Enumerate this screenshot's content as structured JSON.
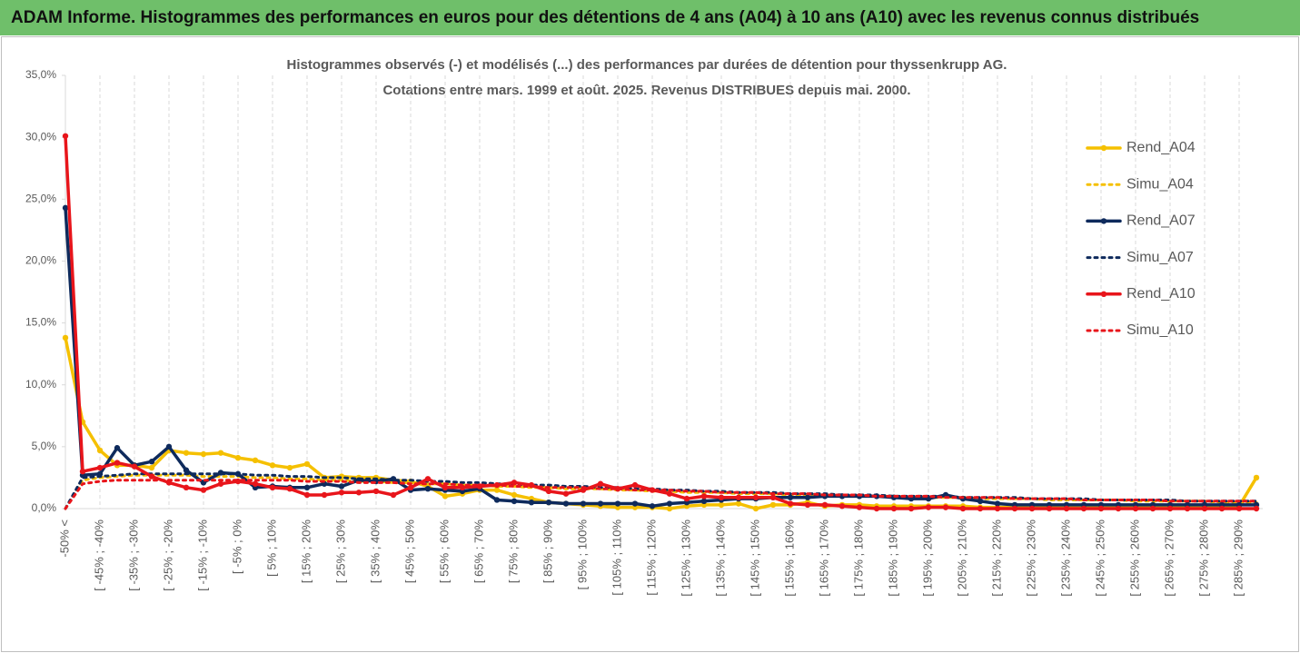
{
  "chart_data": {
    "type": "line",
    "title": "ADAM Informe. Histogrammes des performances en euros pour des détentions de 4 ans (A04) à 10 ans (A10) avec les revenus connus distribués",
    "subtitle": [
      "Histogrammes observés (-) et modélisés (...) des performances par durées de détention pour thyssenkrupp AG.",
      "Cotations entre mars. 1999 et août. 2025. Revenus DISTRIBUES depuis mai. 2000."
    ],
    "categories": [
      "-50% <",
      null,
      "[ -45% ; -40%",
      null,
      "[ -35% ; -30%",
      null,
      "[ -25% ; -20%",
      null,
      "[ -15% ; -10%",
      null,
      "[ -5% ; 0%",
      null,
      "[ 5% ; 10%",
      null,
      "[ 15% ; 20%",
      null,
      "[ 25% ; 30%",
      null,
      "[ 35% ; 40%",
      null,
      "[ 45% ; 50%",
      null,
      "[ 55% ; 60%",
      null,
      "[ 65% ; 70%",
      null,
      "[ 75% ; 80%",
      null,
      "[ 85% ; 90%",
      null,
      "[ 95% ; 100%",
      null,
      "[ 105% ; 110%",
      null,
      "[ 115% ; 120%",
      null,
      "[ 125% ; 130%",
      null,
      "[ 135% ; 140%",
      null,
      "[ 145% ; 150%",
      null,
      "[ 155% ; 160%",
      null,
      "[ 165% ; 170%",
      null,
      "[ 175% ; 180%",
      null,
      "[ 185% ; 190%",
      null,
      "[ 195% ; 200%",
      null,
      "[ 205% ; 210%",
      null,
      "[ 215% ; 220%",
      null,
      "[ 225% ; 230%",
      null,
      "[ 235% ; 240%",
      null,
      "[ 245% ; 250%",
      null,
      "[ 255% ; 260%",
      null,
      "[ 265% ; 270%",
      null,
      "[ 275% ; 280%",
      null,
      "[ 285% ; 290%",
      null
    ],
    "ylim": [
      0,
      35
    ],
    "yticks": [
      {
        "value": 0,
        "label": "0,0%"
      },
      {
        "value": 5,
        "label": "5,0%"
      },
      {
        "value": 10,
        "label": "10,0%"
      },
      {
        "value": 15,
        "label": "15,0%"
      },
      {
        "value": 20,
        "label": "20,0%"
      },
      {
        "value": 25,
        "label": "25,0%"
      },
      {
        "value": 30,
        "label": "30,0%"
      },
      {
        "value": 35,
        "label": "35,0%"
      }
    ],
    "legend": "right",
    "series": [
      {
        "name": "Rend_A04",
        "color": "#f5c000",
        "style": "solid",
        "values": [
          13.8,
          7.0,
          4.7,
          3.5,
          3.5,
          3.3,
          4.7,
          4.5,
          4.4,
          4.5,
          4.1,
          3.9,
          3.5,
          3.3,
          3.6,
          2.5,
          2.6,
          2.5,
          2.5,
          2.3,
          2.2,
          1.8,
          1.0,
          1.2,
          1.5,
          1.5,
          1.1,
          0.8,
          0.5,
          0.4,
          0.3,
          0.2,
          0.1,
          0.1,
          0.1,
          0.0,
          0.2,
          0.3,
          0.3,
          0.4,
          0.0,
          0.3,
          0.3,
          0.5,
          0.2,
          0.3,
          0.3,
          0.2,
          0.2,
          0.2,
          0.2,
          0.2,
          0.2,
          0.1,
          0.1,
          0.1,
          0.1,
          0.1,
          0.1,
          0.1,
          0.1,
          0.1,
          0.1,
          0.1,
          0.1,
          0.1,
          0.1,
          0.1,
          0.2,
          2.5
        ]
      },
      {
        "name": "Simu_A04",
        "color": "#f5c000",
        "style": "dotted",
        "values": [
          0.0,
          2.3,
          2.5,
          2.6,
          2.7,
          2.7,
          2.7,
          2.7,
          2.6,
          2.6,
          2.6,
          2.5,
          2.5,
          2.4,
          2.4,
          2.3,
          2.3,
          2.2,
          2.2,
          2.1,
          2.1,
          2.0,
          2.0,
          1.9,
          1.9,
          1.8,
          1.8,
          1.7,
          1.7,
          1.6,
          1.6,
          1.6,
          1.5,
          1.5,
          1.4,
          1.4,
          1.3,
          1.3,
          1.3,
          1.2,
          1.2,
          1.2,
          1.1,
          1.1,
          1.1,
          1.0,
          1.0,
          1.0,
          1.0,
          0.9,
          0.9,
          0.9,
          0.9,
          0.8,
          0.8,
          0.8,
          0.8,
          0.7,
          0.7,
          0.7,
          0.7,
          0.7,
          0.6,
          0.6,
          0.6,
          0.6,
          0.6,
          0.5,
          0.5,
          0.5
        ]
      },
      {
        "name": "Rend_A07",
        "color": "#0e2a5c",
        "style": "solid",
        "values": [
          24.3,
          2.7,
          2.8,
          4.9,
          3.5,
          3.8,
          5.0,
          3.1,
          2.1,
          2.9,
          2.8,
          1.7,
          1.8,
          1.7,
          1.7,
          2.0,
          1.8,
          2.3,
          2.2,
          2.4,
          1.5,
          1.6,
          1.5,
          1.4,
          1.6,
          0.7,
          0.6,
          0.5,
          0.5,
          0.4,
          0.4,
          0.4,
          0.4,
          0.4,
          0.2,
          0.4,
          0.5,
          0.6,
          0.7,
          0.8,
          0.8,
          0.9,
          0.9,
          0.9,
          1.0,
          1.0,
          1.0,
          1.0,
          0.9,
          0.8,
          0.8,
          1.1,
          0.8,
          0.6,
          0.4,
          0.3,
          0.3,
          0.3,
          0.3,
          0.3,
          0.3,
          0.3,
          0.3,
          0.3,
          0.3,
          0.3,
          0.3,
          0.3,
          0.3,
          0.3
        ]
      },
      {
        "name": "Simu_A07",
        "color": "#0e2a5c",
        "style": "dotted",
        "values": [
          0.0,
          2.5,
          2.6,
          2.7,
          2.8,
          2.8,
          2.8,
          2.8,
          2.8,
          2.8,
          2.8,
          2.7,
          2.7,
          2.6,
          2.6,
          2.5,
          2.5,
          2.4,
          2.4,
          2.3,
          2.3,
          2.2,
          2.2,
          2.1,
          2.1,
          2.0,
          2.0,
          1.9,
          1.9,
          1.8,
          1.8,
          1.7,
          1.7,
          1.6,
          1.6,
          1.5,
          1.5,
          1.4,
          1.4,
          1.3,
          1.3,
          1.3,
          1.2,
          1.2,
          1.2,
          1.1,
          1.1,
          1.1,
          1.0,
          1.0,
          1.0,
          1.0,
          0.9,
          0.9,
          0.9,
          0.9,
          0.8,
          0.8,
          0.8,
          0.8,
          0.7,
          0.7,
          0.7,
          0.7,
          0.7,
          0.6,
          0.6,
          0.6,
          0.6,
          0.6
        ]
      },
      {
        "name": "Rend_A10",
        "color": "#e8151b",
        "style": "solid",
        "values": [
          30.1,
          3.0,
          3.3,
          3.7,
          3.4,
          2.6,
          2.1,
          1.7,
          1.5,
          2.0,
          2.2,
          2.0,
          1.7,
          1.6,
          1.1,
          1.1,
          1.3,
          1.3,
          1.4,
          1.1,
          1.7,
          2.4,
          1.7,
          1.7,
          1.8,
          1.9,
          2.1,
          1.9,
          1.4,
          1.2,
          1.5,
          2.0,
          1.6,
          1.9,
          1.5,
          1.2,
          0.8,
          1.0,
          0.9,
          0.9,
          0.9,
          0.9,
          0.4,
          0.3,
          0.3,
          0.2,
          0.1,
          0.0,
          0.0,
          0.0,
          0.1,
          0.1,
          0.0,
          0.0,
          0.0,
          0.0,
          0.0,
          0.0,
          0.0,
          0.0,
          0.0,
          0.0,
          0.0,
          0.0,
          0.0,
          0.0,
          0.0,
          0.0,
          0.0,
          0.0
        ]
      },
      {
        "name": "Simu_A10",
        "color": "#e8151b",
        "style": "dotted",
        "values": [
          0.0,
          2.0,
          2.2,
          2.3,
          2.3,
          2.3,
          2.3,
          2.3,
          2.3,
          2.3,
          2.3,
          2.3,
          2.3,
          2.3,
          2.2,
          2.2,
          2.2,
          2.1,
          2.1,
          2.1,
          2.0,
          2.0,
          2.0,
          1.9,
          1.9,
          1.9,
          1.8,
          1.8,
          1.7,
          1.7,
          1.7,
          1.6,
          1.6,
          1.5,
          1.5,
          1.5,
          1.4,
          1.4,
          1.3,
          1.3,
          1.3,
          1.2,
          1.2,
          1.2,
          1.1,
          1.1,
          1.1,
          1.0,
          1.0,
          1.0,
          1.0,
          0.9,
          0.9,
          0.9,
          0.9,
          0.8,
          0.8,
          0.8,
          0.8,
          0.7,
          0.7,
          0.7,
          0.7,
          0.7,
          0.6,
          0.6,
          0.6,
          0.6,
          0.6,
          0.6
        ]
      }
    ]
  }
}
